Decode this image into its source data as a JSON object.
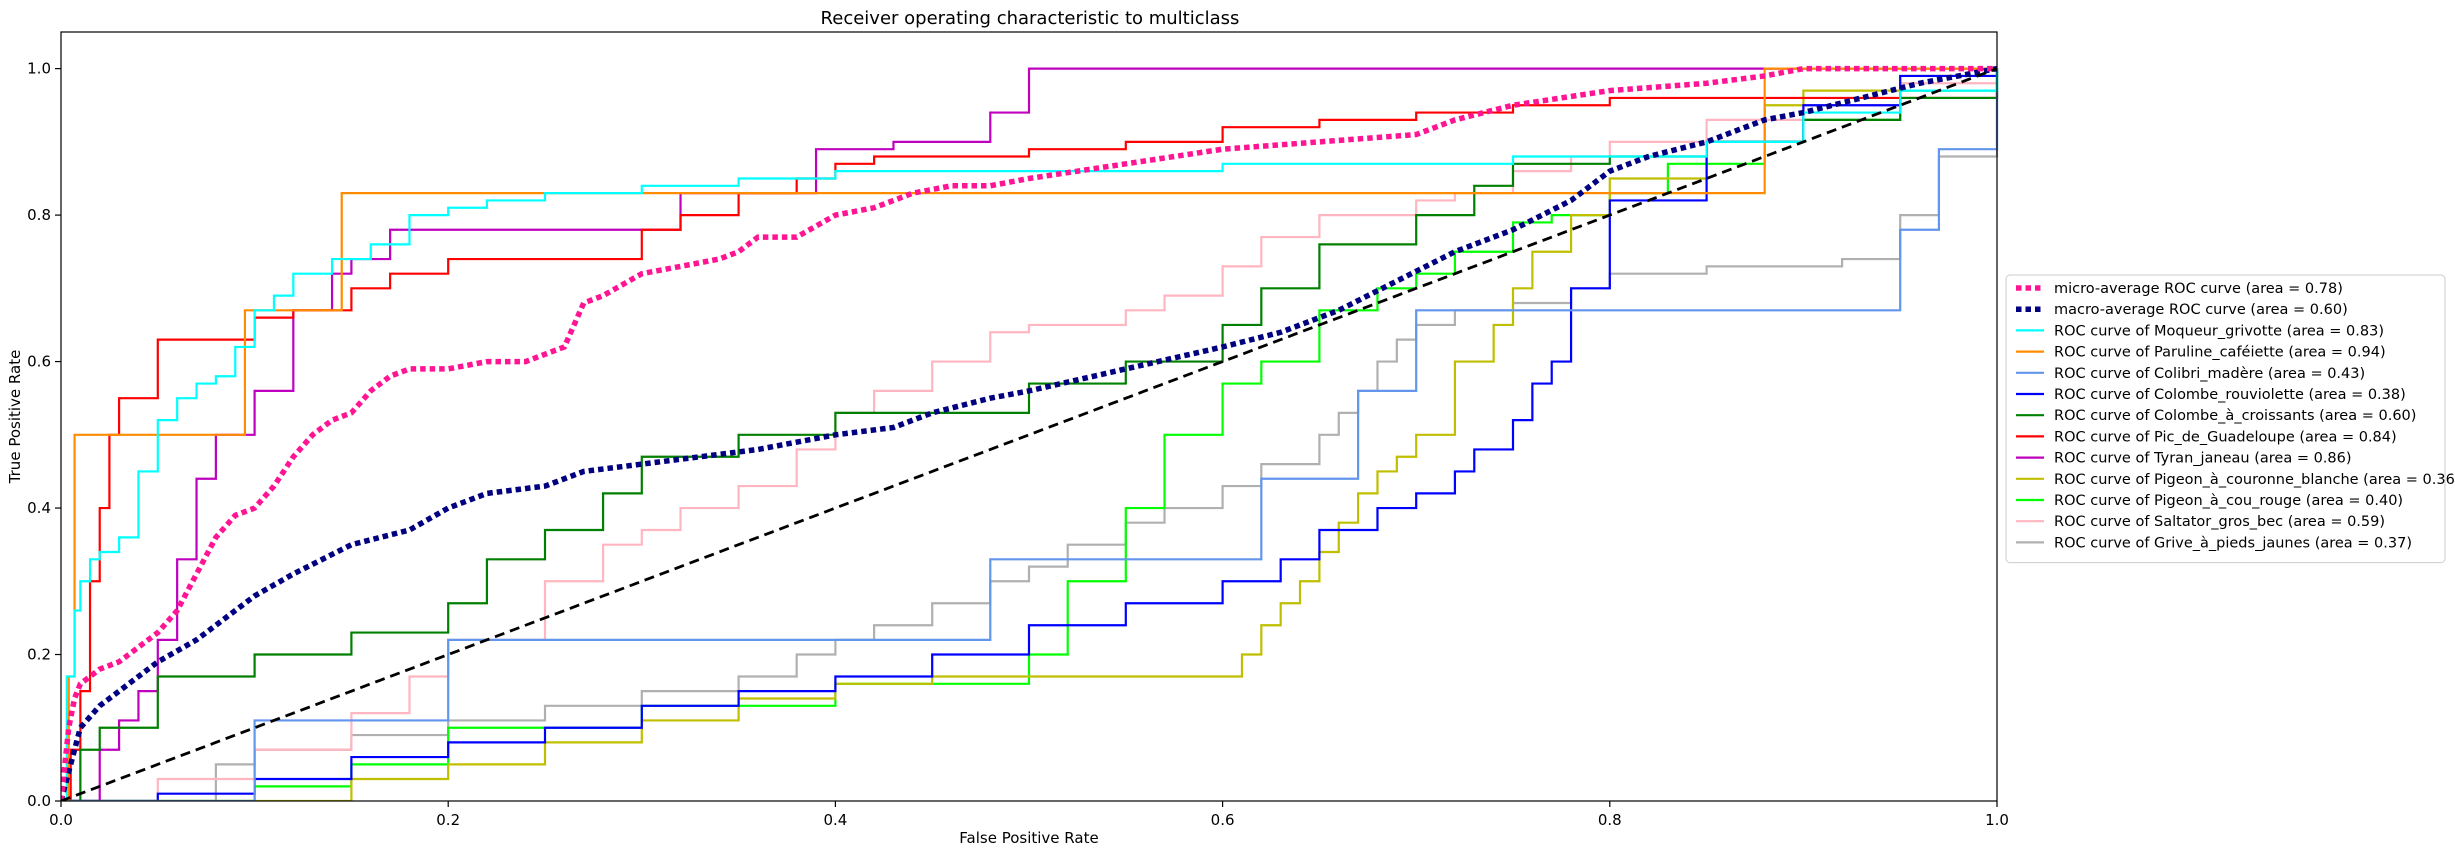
{
  "chart_data": {
    "type": "line",
    "title": "Receiver operating characteristic to multiclass",
    "xlabel": "False Positive Rate",
    "ylabel": "True Positive Rate",
    "xlim": [
      0.0,
      1.0
    ],
    "ylim": [
      0.0,
      1.05
    ],
    "xticks": [
      "0.0",
      "0.2",
      "0.4",
      "0.6",
      "0.8",
      "1.0"
    ],
    "yticks": [
      "0.0",
      "0.2",
      "0.4",
      "0.6",
      "0.8",
      "1.0"
    ],
    "grid": false,
    "legend_position": "center-right",
    "series": [
      {
        "name": "micro-average ROC curve (area = 0.78)",
        "color": "#ff1493",
        "style": "dotted",
        "width": 5.5,
        "x": [
          0,
          0.002,
          0.004,
          0.007,
          0.01,
          0.015,
          0.02,
          0.03,
          0.04,
          0.05,
          0.06,
          0.07,
          0.08,
          0.09,
          0.1,
          0.11,
          0.12,
          0.13,
          0.14,
          0.15,
          0.16,
          0.17,
          0.18,
          0.2,
          0.22,
          0.24,
          0.26,
          0.27,
          0.28,
          0.3,
          0.32,
          0.34,
          0.35,
          0.36,
          0.38,
          0.4,
          0.42,
          0.44,
          0.46,
          0.48,
          0.5,
          0.55,
          0.6,
          0.65,
          0.7,
          0.72,
          0.75,
          0.8,
          0.85,
          0.88,
          0.9,
          0.95,
          1.0
        ],
        "y": [
          0,
          0.05,
          0.1,
          0.14,
          0.16,
          0.17,
          0.18,
          0.19,
          0.21,
          0.23,
          0.26,
          0.31,
          0.36,
          0.39,
          0.4,
          0.43,
          0.47,
          0.5,
          0.52,
          0.53,
          0.56,
          0.58,
          0.59,
          0.59,
          0.6,
          0.6,
          0.62,
          0.68,
          0.69,
          0.72,
          0.73,
          0.74,
          0.75,
          0.77,
          0.77,
          0.8,
          0.81,
          0.83,
          0.84,
          0.84,
          0.85,
          0.87,
          0.89,
          0.9,
          0.91,
          0.93,
          0.95,
          0.97,
          0.98,
          0.99,
          1.0,
          1.0,
          1.0
        ]
      },
      {
        "name": "macro-average ROC curve (area = 0.60)",
        "color": "#000080",
        "style": "dotted",
        "width": 5.5,
        "x": [
          0,
          0.01,
          0.02,
          0.03,
          0.05,
          0.07,
          0.1,
          0.12,
          0.15,
          0.18,
          0.2,
          0.22,
          0.25,
          0.27,
          0.3,
          0.33,
          0.36,
          0.4,
          0.43,
          0.45,
          0.48,
          0.5,
          0.55,
          0.6,
          0.63,
          0.66,
          0.69,
          0.72,
          0.75,
          0.78,
          0.8,
          0.82,
          0.85,
          0.88,
          0.9,
          0.93,
          0.96,
          1.0
        ],
        "y": [
          0,
          0.1,
          0.13,
          0.15,
          0.19,
          0.22,
          0.28,
          0.31,
          0.35,
          0.37,
          0.4,
          0.42,
          0.43,
          0.45,
          0.46,
          0.47,
          0.48,
          0.5,
          0.51,
          0.53,
          0.55,
          0.56,
          0.59,
          0.62,
          0.64,
          0.67,
          0.71,
          0.75,
          0.78,
          0.82,
          0.86,
          0.88,
          0.9,
          0.93,
          0.94,
          0.96,
          0.98,
          1.0
        ]
      },
      {
        "name": "ROC curve of Moqueur_grivotte (area = 0.83)",
        "color": "#00ffff",
        "style": "step",
        "width": 2.2,
        "x": [
          0,
          0.003,
          0.007,
          0.01,
          0.015,
          0.02,
          0.03,
          0.04,
          0.05,
          0.06,
          0.07,
          0.08,
          0.09,
          0.1,
          0.11,
          0.12,
          0.14,
          0.16,
          0.18,
          0.2,
          0.22,
          0.25,
          0.3,
          0.35,
          0.4,
          0.5,
          0.6,
          0.7,
          0.75,
          0.8,
          0.85,
          0.9,
          0.95,
          1.0
        ],
        "y": [
          0,
          0.17,
          0.26,
          0.3,
          0.33,
          0.34,
          0.36,
          0.45,
          0.52,
          0.55,
          0.57,
          0.58,
          0.62,
          0.67,
          0.69,
          0.72,
          0.74,
          0.76,
          0.8,
          0.81,
          0.82,
          0.83,
          0.84,
          0.85,
          0.86,
          0.86,
          0.87,
          0.87,
          0.88,
          0.88,
          0.9,
          0.94,
          0.97,
          1.0
        ]
      },
      {
        "name": "ROC curve of Paruline_caféiette (area = 0.94)",
        "color": "#ff8c00",
        "style": "step",
        "width": 2.2,
        "x": [
          0,
          0.004,
          0.007,
          0.085,
          0.095,
          0.145,
          0.88,
          0.9,
          1.0
        ],
        "y": [
          0,
          0.17,
          0.5,
          0.5,
          0.67,
          0.83,
          1.0,
          1.0,
          1.0
        ]
      },
      {
        "name": "ROC curve of Colibri_madère (area = 0.43)",
        "color": "#6495ed",
        "style": "step",
        "width": 2.2,
        "x": [
          0,
          0.07,
          0.1,
          0.2,
          0.45,
          0.48,
          0.62,
          0.67,
          0.7,
          0.95,
          0.97,
          1.0
        ],
        "y": [
          0,
          0.0,
          0.11,
          0.22,
          0.22,
          0.33,
          0.44,
          0.56,
          0.67,
          0.78,
          0.89,
          1.0
        ]
      },
      {
        "name": "ROC curve of Colombe_rouviolette (area = 0.38)",
        "color": "#0000ff",
        "style": "step",
        "width": 2.2,
        "x": [
          0,
          0.05,
          0.1,
          0.15,
          0.2,
          0.25,
          0.3,
          0.35,
          0.4,
          0.45,
          0.5,
          0.55,
          0.6,
          0.63,
          0.65,
          0.68,
          0.7,
          0.72,
          0.73,
          0.75,
          0.76,
          0.77,
          0.78,
          0.8,
          0.85,
          0.9,
          0.95,
          1.0
        ],
        "y": [
          0,
          0.01,
          0.03,
          0.06,
          0.08,
          0.1,
          0.13,
          0.15,
          0.17,
          0.2,
          0.24,
          0.27,
          0.3,
          0.33,
          0.37,
          0.4,
          0.42,
          0.45,
          0.48,
          0.52,
          0.57,
          0.6,
          0.7,
          0.82,
          0.9,
          0.95,
          0.99,
          1.0
        ]
      },
      {
        "name": "ROC curve of Colombe_à_croissants (area = 0.60)",
        "color": "#008000",
        "style": "step",
        "width": 2.2,
        "x": [
          0,
          0.01,
          0.02,
          0.05,
          0.1,
          0.15,
          0.2,
          0.22,
          0.25,
          0.28,
          0.3,
          0.32,
          0.35,
          0.38,
          0.4,
          0.45,
          0.5,
          0.55,
          0.6,
          0.62,
          0.65,
          0.7,
          0.73,
          0.75,
          0.8,
          0.85,
          0.9,
          0.95,
          1.0
        ],
        "y": [
          0,
          0.07,
          0.1,
          0.17,
          0.2,
          0.23,
          0.27,
          0.33,
          0.37,
          0.42,
          0.47,
          0.47,
          0.5,
          0.5,
          0.53,
          0.53,
          0.57,
          0.6,
          0.65,
          0.7,
          0.76,
          0.8,
          0.84,
          0.87,
          0.88,
          0.9,
          0.93,
          0.96,
          1.0
        ]
      },
      {
        "name": "ROC curve of Pic_de_Guadeloupe (area = 0.84)",
        "color": "#ff0000",
        "style": "step",
        "width": 2.2,
        "x": [
          0,
          0.005,
          0.01,
          0.015,
          0.02,
          0.025,
          0.03,
          0.05,
          0.06,
          0.1,
          0.12,
          0.15,
          0.17,
          0.2,
          0.3,
          0.32,
          0.35,
          0.38,
          0.4,
          0.42,
          0.5,
          0.55,
          0.6,
          0.65,
          0.7,
          0.75,
          0.8,
          0.9,
          1.0
        ],
        "y": [
          0,
          0.07,
          0.15,
          0.3,
          0.4,
          0.5,
          0.55,
          0.63,
          0.63,
          0.66,
          0.67,
          0.7,
          0.72,
          0.74,
          0.78,
          0.8,
          0.83,
          0.85,
          0.87,
          0.88,
          0.89,
          0.9,
          0.92,
          0.93,
          0.94,
          0.95,
          0.96,
          0.96,
          0.97
        ]
      },
      {
        "name": "ROC curve of Tyran_janeau (area = 0.86)",
        "color": "#bf00bf",
        "style": "step",
        "width": 2.2,
        "x": [
          0,
          0.02,
          0.03,
          0.04,
          0.05,
          0.06,
          0.07,
          0.08,
          0.1,
          0.12,
          0.14,
          0.15,
          0.17,
          0.2,
          0.3,
          0.32,
          0.35,
          0.38,
          0.39,
          0.43,
          0.48,
          0.5,
          0.55,
          0.6,
          0.7,
          0.8,
          1.0
        ],
        "y": [
          0,
          0.07,
          0.11,
          0.15,
          0.22,
          0.33,
          0.44,
          0.5,
          0.56,
          0.67,
          0.72,
          0.74,
          0.78,
          0.78,
          0.78,
          0.83,
          0.83,
          0.83,
          0.89,
          0.9,
          0.94,
          1.0,
          1.0,
          1.0,
          1.0,
          1.0,
          1.0
        ]
      },
      {
        "name": "ROC curve of Pigeon_à_couronne_blanche (area = 0.36)",
        "color": "#bfbf00",
        "style": "step",
        "width": 2.2,
        "x": [
          0,
          0.1,
          0.15,
          0.2,
          0.25,
          0.3,
          0.35,
          0.4,
          0.45,
          0.5,
          0.55,
          0.6,
          0.61,
          0.62,
          0.63,
          0.64,
          0.65,
          0.66,
          0.67,
          0.68,
          0.69,
          0.7,
          0.72,
          0.74,
          0.75,
          0.76,
          0.78,
          0.8,
          0.85,
          0.88,
          0.9,
          0.95,
          1.0
        ],
        "y": [
          0,
          0.0,
          0.03,
          0.05,
          0.08,
          0.11,
          0.14,
          0.16,
          0.17,
          0.17,
          0.17,
          0.17,
          0.2,
          0.24,
          0.27,
          0.3,
          0.34,
          0.38,
          0.42,
          0.45,
          0.47,
          0.5,
          0.6,
          0.65,
          0.7,
          0.75,
          0.8,
          0.85,
          0.9,
          0.95,
          0.97,
          0.99,
          1.0
        ]
      },
      {
        "name": "ROC curve of Pigeon_à_cou_rouge (area = 0.40)",
        "color": "#00ff00",
        "style": "step",
        "width": 2.2,
        "x": [
          0,
          0.1,
          0.15,
          0.2,
          0.3,
          0.4,
          0.43,
          0.5,
          0.52,
          0.55,
          0.57,
          0.6,
          0.62,
          0.65,
          0.68,
          0.7,
          0.72,
          0.75,
          0.77,
          0.8,
          0.83,
          0.88,
          0.9,
          0.95,
          1.0
        ],
        "y": [
          0,
          0.02,
          0.05,
          0.1,
          0.13,
          0.16,
          0.16,
          0.2,
          0.3,
          0.4,
          0.5,
          0.57,
          0.6,
          0.67,
          0.7,
          0.72,
          0.75,
          0.79,
          0.8,
          0.83,
          0.87,
          0.9,
          0.93,
          0.97,
          1.0
        ]
      },
      {
        "name": "ROC curve of Saltator_gros_bec (area = 0.59)",
        "color": "#ffb6c1",
        "style": "step",
        "width": 2.2,
        "x": [
          0,
          0.05,
          0.1,
          0.15,
          0.18,
          0.2,
          0.25,
          0.28,
          0.3,
          0.32,
          0.35,
          0.38,
          0.4,
          0.42,
          0.45,
          0.48,
          0.5,
          0.55,
          0.57,
          0.6,
          0.62,
          0.65,
          0.7,
          0.72,
          0.75,
          0.78,
          0.8,
          0.85,
          0.9,
          0.95,
          1.0
        ],
        "y": [
          0,
          0.03,
          0.07,
          0.12,
          0.17,
          0.22,
          0.3,
          0.35,
          0.37,
          0.4,
          0.43,
          0.48,
          0.53,
          0.56,
          0.6,
          0.64,
          0.65,
          0.67,
          0.69,
          0.73,
          0.77,
          0.8,
          0.82,
          0.83,
          0.86,
          0.88,
          0.9,
          0.93,
          0.95,
          0.98,
          1.0
        ]
      },
      {
        "name": "ROC curve of Grive_à_pieds_jaunes (area = 0.37)",
        "color": "#b0b0b0",
        "style": "step",
        "width": 2.2,
        "x": [
          0,
          0.07,
          0.08,
          0.1,
          0.15,
          0.2,
          0.25,
          0.3,
          0.35,
          0.38,
          0.4,
          0.42,
          0.45,
          0.48,
          0.5,
          0.52,
          0.55,
          0.57,
          0.6,
          0.62,
          0.65,
          0.66,
          0.67,
          0.68,
          0.69,
          0.7,
          0.72,
          0.75,
          0.78,
          0.8,
          0.85,
          0.9,
          0.92,
          0.95,
          0.97,
          1.0
        ],
        "y": [
          0,
          0.0,
          0.05,
          0.07,
          0.09,
          0.11,
          0.13,
          0.15,
          0.17,
          0.2,
          0.22,
          0.24,
          0.27,
          0.3,
          0.32,
          0.35,
          0.38,
          0.4,
          0.43,
          0.46,
          0.5,
          0.53,
          0.56,
          0.6,
          0.63,
          0.65,
          0.67,
          0.68,
          0.7,
          0.72,
          0.73,
          0.73,
          0.74,
          0.8,
          0.88,
          1.0
        ]
      }
    ],
    "diagonal": {
      "x": [
        0,
        1
      ],
      "y": [
        0,
        1
      ],
      "color": "#000000",
      "style": "dashed",
      "width": 2.8
    }
  }
}
